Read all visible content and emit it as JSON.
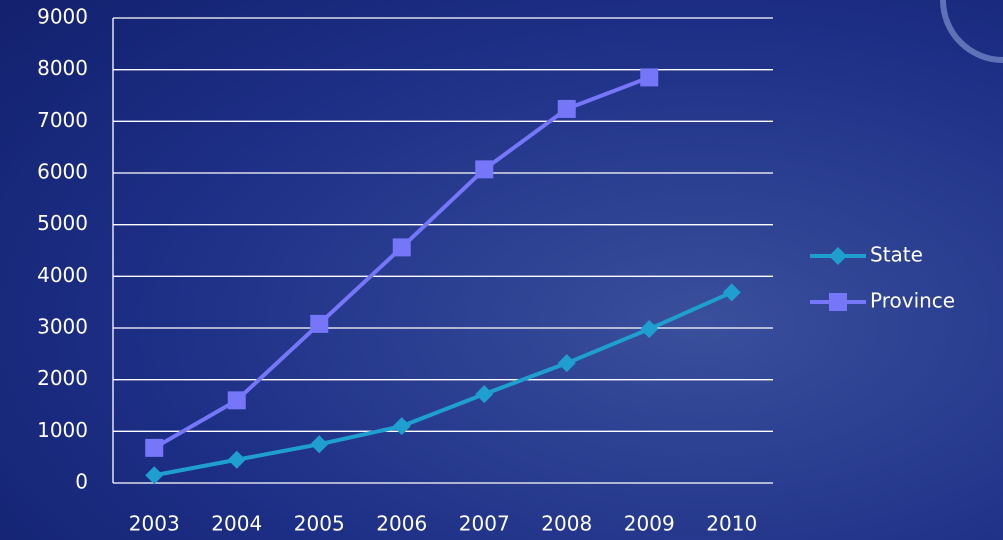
{
  "chart_data": {
    "type": "line",
    "categories": [
      "2003",
      "2004",
      "2005",
      "2006",
      "2007",
      "2008",
      "2009",
      "2010"
    ],
    "series": [
      {
        "name": "State",
        "color": "#1e9fcf",
        "marker": "diamond",
        "values": [
          150,
          450,
          750,
          1100,
          1720,
          2320,
          2980,
          3690
        ]
      },
      {
        "name": "Province",
        "color": "#7676f8",
        "marker": "square",
        "values": [
          680,
          1600,
          3080,
          4560,
          6070,
          7240,
          7850,
          null
        ]
      }
    ],
    "ylim": [
      0,
      9000
    ],
    "yticks": [
      0,
      1000,
      2000,
      3000,
      4000,
      5000,
      6000,
      7000,
      8000,
      9000
    ],
    "grid": true,
    "legend": "right"
  }
}
